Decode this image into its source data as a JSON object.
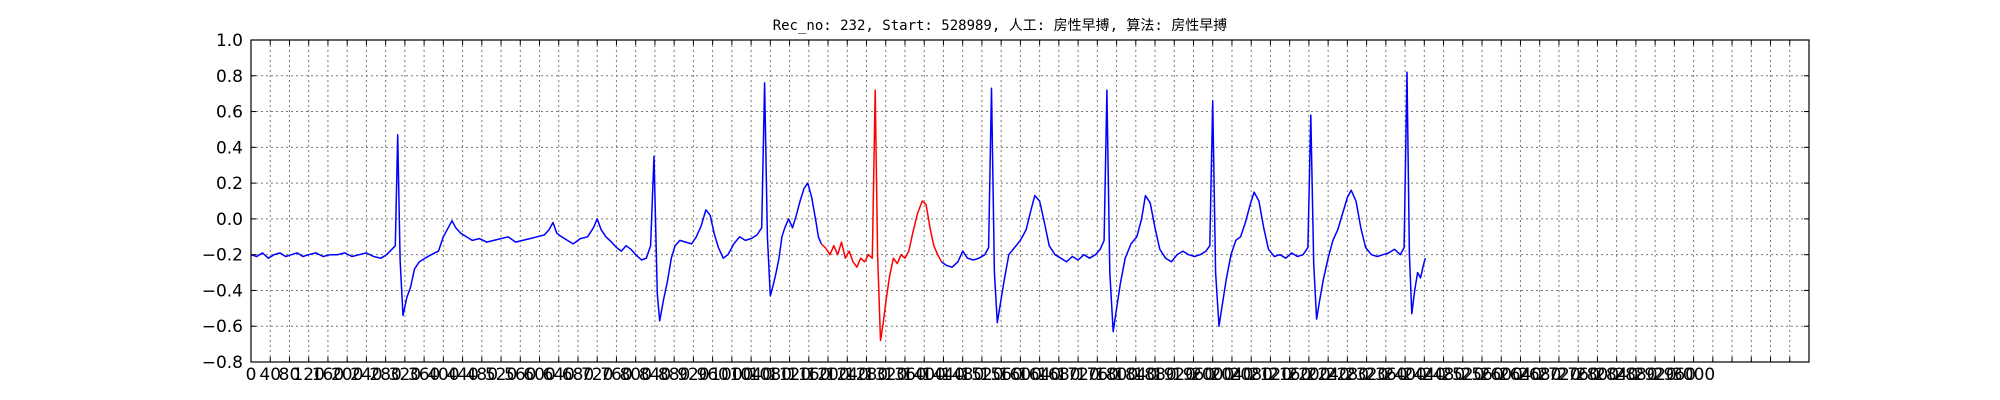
{
  "chart_data": {
    "type": "line",
    "title": "Rec_no: 232, Start: 528989, 人工: 房性早搏, 算法: 房性早搏",
    "xlabel": "",
    "ylabel": "",
    "xlim": [
      0,
      3240
    ],
    "ylim": [
      -0.8,
      1.0
    ],
    "grid": true,
    "x_ticks": [
      0,
      40,
      80,
      120,
      160,
      200,
      240,
      280,
      320,
      360,
      400,
      440,
      480,
      520,
      560,
      600,
      640,
      680,
      720,
      760,
      800,
      840,
      880,
      920,
      960,
      1000,
      1040,
      1080,
      1120,
      1160,
      1200,
      1240,
      1280,
      1320,
      1360,
      1400,
      1440,
      1480,
      1520,
      1560,
      1600,
      1640,
      1680,
      1720,
      1760,
      1800,
      1840,
      1880,
      1920,
      1960,
      2000,
      2040,
      2080,
      2120,
      2160,
      2200,
      2240,
      2280,
      2320,
      2360,
      2400,
      2440,
      2480,
      2520,
      2560,
      2600,
      2640,
      2680,
      2720,
      2760,
      2800,
      2840,
      2880,
      2920,
      2960,
      3000,
      3040,
      3080,
      3120,
      3160,
      3200,
      3240
    ],
    "x_tick_labels": [
      "0",
      "40",
      "80",
      "120",
      "160",
      "200",
      "240",
      "280",
      "320",
      "360",
      "400",
      "440",
      "480",
      "520",
      "560",
      "600",
      "640",
      "680",
      "720",
      "760",
      "800",
      "840",
      "880",
      "920",
      "960",
      "1000",
      "1040",
      "1080",
      "1120",
      "1160",
      "1200",
      "1240",
      "1280",
      "1320",
      "1360",
      "1400",
      "1440",
      "1480",
      "1520",
      "1560",
      "1600",
      "1640",
      "1680",
      "1720",
      "1760",
      "1800",
      "1840",
      "1880",
      "1920",
      "1960",
      "2000",
      "2040",
      "2080",
      "2120",
      "2160",
      "2200",
      "2240",
      "2280",
      "2320",
      "2360",
      "2400",
      "2440",
      "2480",
      "2520",
      "2560",
      "2600",
      "2640",
      "2680",
      "2720",
      "2760",
      "2800",
      "2840",
      "2880",
      "2920",
      "2960",
      "3000",
      "",
      "",
      "",
      "",
      "",
      ""
    ],
    "y_ticks": [
      -0.8,
      -0.6,
      -0.4,
      -0.2,
      0.0,
      0.2,
      0.4,
      0.6,
      0.8,
      1.0
    ],
    "y_tick_labels": [
      "−0.8",
      "−0.6",
      "−0.4",
      "−0.2",
      "0.0",
      "0.2",
      "0.4",
      "0.6",
      "0.8",
      "1.0"
    ],
    "series": [
      {
        "color": "#0000ff",
        "points": [
          [
            0,
            -0.2
          ],
          [
            12,
            -0.21
          ],
          [
            24,
            -0.19
          ],
          [
            36,
            -0.22
          ],
          [
            48,
            -0.2
          ],
          [
            60,
            -0.19
          ],
          [
            72,
            -0.21
          ],
          [
            84,
            -0.2
          ],
          [
            96,
            -0.19
          ],
          [
            108,
            -0.21
          ],
          [
            120,
            -0.2
          ],
          [
            135,
            -0.19
          ],
          [
            150,
            -0.21
          ],
          [
            165,
            -0.2
          ],
          [
            180,
            -0.2
          ],
          [
            195,
            -0.19
          ],
          [
            210,
            -0.21
          ],
          [
            225,
            -0.2
          ],
          [
            240,
            -0.19
          ],
          [
            255,
            -0.21
          ],
          [
            270,
            -0.22
          ],
          [
            282,
            -0.2
          ],
          [
            293,
            -0.17
          ],
          [
            300,
            -0.15
          ],
          [
            305,
            0.47
          ],
          [
            310,
            -0.23
          ],
          [
            316,
            -0.54
          ],
          [
            324,
            -0.44
          ],
          [
            332,
            -0.38
          ],
          [
            340,
            -0.28
          ],
          [
            350,
            -0.24
          ],
          [
            362,
            -0.22
          ],
          [
            375,
            -0.2
          ],
          [
            390,
            -0.18
          ],
          [
            400,
            -0.1
          ],
          [
            410,
            -0.05
          ],
          [
            418,
            -0.01
          ],
          [
            426,
            -0.05
          ],
          [
            436,
            -0.08
          ],
          [
            448,
            -0.1
          ],
          [
            460,
            -0.12
          ],
          [
            475,
            -0.11
          ],
          [
            490,
            -0.13
          ],
          [
            505,
            -0.12
          ],
          [
            520,
            -0.11
          ],
          [
            535,
            -0.1
          ],
          [
            550,
            -0.13
          ],
          [
            565,
            -0.12
          ],
          [
            580,
            -0.11
          ],
          [
            595,
            -0.1
          ],
          [
            610,
            -0.09
          ],
          [
            620,
            -0.06
          ],
          [
            628,
            -0.02
          ],
          [
            636,
            -0.08
          ],
          [
            646,
            -0.1
          ],
          [
            658,
            -0.12
          ],
          [
            670,
            -0.14
          ],
          [
            685,
            -0.11
          ],
          [
            700,
            -0.1
          ],
          [
            712,
            -0.05
          ],
          [
            720,
            0.0
          ],
          [
            728,
            -0.06
          ],
          [
            738,
            -0.1
          ],
          [
            750,
            -0.13
          ],
          [
            760,
            -0.16
          ],
          [
            770,
            -0.18
          ],
          [
            780,
            -0.15
          ],
          [
            790,
            -0.17
          ],
          [
            800,
            -0.2
          ],
          [
            812,
            -0.23
          ],
          [
            822,
            -0.22
          ],
          [
            831,
            -0.15
          ],
          [
            838,
            0.35
          ],
          [
            845,
            -0.42
          ],
          [
            850,
            -0.57
          ],
          [
            858,
            -0.45
          ],
          [
            866,
            -0.35
          ],
          [
            874,
            -0.22
          ],
          [
            882,
            -0.15
          ],
          [
            892,
            -0.12
          ],
          [
            904,
            -0.13
          ],
          [
            916,
            -0.14
          ],
          [
            926,
            -0.1
          ],
          [
            936,
            -0.04
          ],
          [
            946,
            0.05
          ],
          [
            955,
            0.02
          ],
          [
            963,
            -0.08
          ],
          [
            972,
            -0.16
          ],
          [
            982,
            -0.22
          ],
          [
            992,
            -0.2
          ],
          [
            1004,
            -0.14
          ],
          [
            1016,
            -0.1
          ],
          [
            1028,
            -0.12
          ],
          [
            1040,
            -0.11
          ],
          [
            1052,
            -0.09
          ],
          [
            1062,
            -0.05
          ],
          [
            1068,
            0.76
          ],
          [
            1074,
            -0.1
          ],
          [
            1080,
            -0.43
          ],
          [
            1086,
            -0.37
          ],
          [
            1092,
            -0.3
          ],
          [
            1098,
            -0.22
          ],
          [
            1104,
            -0.1
          ],
          [
            1110,
            -0.05
          ],
          [
            1118,
            0.0
          ],
          [
            1126,
            -0.05
          ],
          [
            1134,
            0.02
          ],
          [
            1142,
            0.1
          ],
          [
            1150,
            0.17
          ],
          [
            1158,
            0.2
          ],
          [
            1166,
            0.12
          ],
          [
            1174,
            0.0
          ],
          [
            1180,
            -0.1
          ],
          [
            1186,
            -0.14
          ]
        ]
      },
      {
        "color": "#ff0000",
        "points": [
          [
            1186,
            -0.14
          ],
          [
            1194,
            -0.16
          ],
          [
            1204,
            -0.2
          ],
          [
            1212,
            -0.15
          ],
          [
            1220,
            -0.2
          ],
          [
            1228,
            -0.13
          ],
          [
            1236,
            -0.22
          ],
          [
            1244,
            -0.18
          ],
          [
            1252,
            -0.24
          ],
          [
            1260,
            -0.27
          ],
          [
            1268,
            -0.22
          ],
          [
            1276,
            -0.24
          ],
          [
            1284,
            -0.2
          ],
          [
            1292,
            -0.22
          ],
          [
            1298,
            0.72
          ],
          [
            1303,
            -0.2
          ],
          [
            1309,
            -0.68
          ],
          [
            1315,
            -0.58
          ],
          [
            1321,
            -0.45
          ],
          [
            1328,
            -0.32
          ],
          [
            1336,
            -0.22
          ],
          [
            1344,
            -0.25
          ],
          [
            1352,
            -0.2
          ],
          [
            1360,
            -0.22
          ],
          [
            1368,
            -0.18
          ],
          [
            1376,
            -0.08
          ],
          [
            1386,
            0.03
          ],
          [
            1396,
            0.1
          ],
          [
            1404,
            0.08
          ],
          [
            1412,
            -0.05
          ],
          [
            1420,
            -0.15
          ],
          [
            1428,
            -0.2
          ],
          [
            1436,
            -0.24
          ]
        ]
      },
      {
        "color": "#0000ff",
        "points": [
          [
            1436,
            -0.24
          ],
          [
            1446,
            -0.26
          ],
          [
            1458,
            -0.27
          ],
          [
            1470,
            -0.24
          ],
          [
            1480,
            -0.18
          ],
          [
            1490,
            -0.22
          ],
          [
            1502,
            -0.23
          ],
          [
            1514,
            -0.22
          ],
          [
            1526,
            -0.2
          ],
          [
            1534,
            -0.16
          ],
          [
            1540,
            0.73
          ],
          [
            1546,
            -0.3
          ],
          [
            1552,
            -0.58
          ],
          [
            1558,
            -0.48
          ],
          [
            1566,
            -0.35
          ],
          [
            1576,
            -0.2
          ],
          [
            1588,
            -0.16
          ],
          [
            1600,
            -0.12
          ],
          [
            1612,
            -0.06
          ],
          [
            1622,
            0.05
          ],
          [
            1630,
            0.13
          ],
          [
            1640,
            0.1
          ],
          [
            1650,
            -0.02
          ],
          [
            1660,
            -0.15
          ],
          [
            1672,
            -0.2
          ],
          [
            1684,
            -0.22
          ],
          [
            1696,
            -0.24
          ],
          [
            1708,
            -0.21
          ],
          [
            1720,
            -0.23
          ],
          [
            1732,
            -0.2
          ],
          [
            1744,
            -0.22
          ],
          [
            1756,
            -0.2
          ],
          [
            1766,
            -0.17
          ],
          [
            1774,
            -0.12
          ],
          [
            1780,
            0.72
          ],
          [
            1786,
            -0.3
          ],
          [
            1793,
            -0.63
          ],
          [
            1800,
            -0.5
          ],
          [
            1808,
            -0.36
          ],
          [
            1818,
            -0.22
          ],
          [
            1830,
            -0.14
          ],
          [
            1842,
            -0.1
          ],
          [
            1852,
            0.0
          ],
          [
            1860,
            0.13
          ],
          [
            1870,
            0.09
          ],
          [
            1880,
            -0.05
          ],
          [
            1890,
            -0.17
          ],
          [
            1902,
            -0.22
          ],
          [
            1914,
            -0.24
          ],
          [
            1926,
            -0.2
          ],
          [
            1938,
            -0.18
          ],
          [
            1950,
            -0.2
          ],
          [
            1962,
            -0.21
          ],
          [
            1974,
            -0.2
          ],
          [
            1986,
            -0.18
          ],
          [
            1994,
            -0.15
          ],
          [
            2000,
            0.66
          ],
          [
            2006,
            -0.3
          ],
          [
            2013,
            -0.6
          ],
          [
            2020,
            -0.48
          ],
          [
            2028,
            -0.34
          ],
          [
            2038,
            -0.2
          ],
          [
            2048,
            -0.12
          ],
          [
            2058,
            -0.1
          ],
          [
            2068,
            -0.02
          ],
          [
            2078,
            0.08
          ],
          [
            2086,
            0.15
          ],
          [
            2096,
            0.1
          ],
          [
            2106,
            -0.05
          ],
          [
            2116,
            -0.17
          ],
          [
            2128,
            -0.21
          ],
          [
            2140,
            -0.2
          ],
          [
            2152,
            -0.22
          ],
          [
            2164,
            -0.19
          ],
          [
            2176,
            -0.21
          ],
          [
            2188,
            -0.2
          ],
          [
            2198,
            -0.16
          ],
          [
            2204,
            0.58
          ],
          [
            2210,
            -0.25
          ],
          [
            2216,
            -0.56
          ],
          [
            2222,
            -0.46
          ],
          [
            2230,
            -0.34
          ],
          [
            2240,
            -0.22
          ],
          [
            2250,
            -0.12
          ],
          [
            2260,
            -0.06
          ],
          [
            2270,
            0.03
          ],
          [
            2280,
            0.12
          ],
          [
            2288,
            0.16
          ],
          [
            2298,
            0.1
          ],
          [
            2308,
            -0.05
          ],
          [
            2318,
            -0.16
          ],
          [
            2330,
            -0.2
          ],
          [
            2342,
            -0.21
          ],
          [
            2354,
            -0.2
          ],
          [
            2366,
            -0.19
          ],
          [
            2378,
            -0.17
          ],
          [
            2390,
            -0.2
          ],
          [
            2398,
            -0.16
          ],
          [
            2404,
            0.82
          ],
          [
            2409,
            -0.2
          ],
          [
            2414,
            -0.53
          ],
          [
            2420,
            -0.4
          ],
          [
            2426,
            -0.3
          ],
          [
            2432,
            -0.33
          ],
          [
            2437,
            -0.27
          ],
          [
            2442,
            -0.22
          ]
        ]
      }
    ]
  }
}
